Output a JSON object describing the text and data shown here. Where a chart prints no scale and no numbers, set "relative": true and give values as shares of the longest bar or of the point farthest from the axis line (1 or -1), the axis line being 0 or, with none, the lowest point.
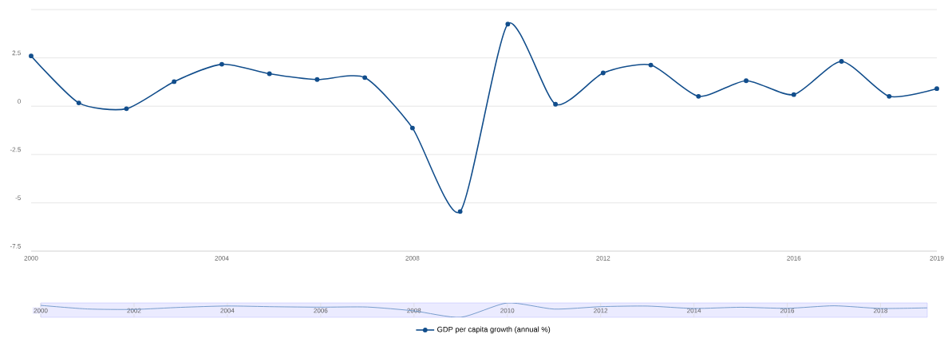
{
  "chart_data": [
    {
      "type": "line",
      "x": [
        2000,
        2001,
        2002,
        2003,
        2004,
        2005,
        2006,
        2007,
        2008,
        2009,
        2010,
        2011,
        2012,
        2013,
        2014,
        2015,
        2016,
        2017,
        2018,
        2019
      ],
      "series": [
        {
          "name": "GDP per capita growth (annual %)",
          "color": "#124e8c",
          "values": [
            2.6,
            0.17,
            -0.13,
            1.27,
            2.17,
            1.68,
            1.38,
            1.48,
            -1.13,
            -5.45,
            4.25,
            0.1,
            1.72,
            2.13,
            0.51,
            1.32,
            0.6,
            2.32,
            0.51,
            0.91
          ]
        }
      ],
      "xlim": [
        2000,
        2019
      ],
      "xticks": [
        2000,
        2004,
        2008,
        2012,
        2016,
        2019
      ],
      "ylim": [
        -7.5,
        5
      ],
      "yticks": [
        -7.5,
        -5,
        -2.5,
        0,
        2.5,
        {
          "value": 5,
          "label": null
        }
      ],
      "grid": "y",
      "marker": "circle",
      "legend": "bottom"
    },
    {
      "type": "line",
      "x": [
        2000,
        2001,
        2002,
        2003,
        2004,
        2005,
        2006,
        2007,
        2008,
        2009,
        2010,
        2011,
        2012,
        2013,
        2014,
        2015,
        2016,
        2017,
        2018,
        2019
      ],
      "series": [
        {
          "color": "#6f97c8",
          "values": [
            0.83,
            0.579,
            0.548,
            0.693,
            0.786,
            0.735,
            0.704,
            0.714,
            0.445,
            0,
            1,
            0.572,
            0.739,
            0.781,
            0.614,
            0.698,
            0.624,
            0.801,
            0.614,
            0.656
          ]
        }
      ],
      "xlim": [
        2000,
        2019
      ],
      "xticks": [
        2000,
        2002,
        2004,
        2006,
        2008,
        2010,
        2012,
        2014,
        2016,
        2018
      ],
      "relative": true,
      "grid": "x",
      "tick_labels": "x",
      "marker": "none"
    }
  ]
}
